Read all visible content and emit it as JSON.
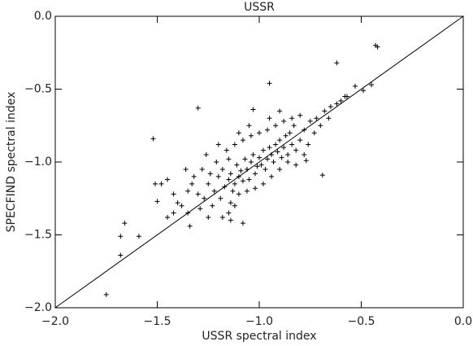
{
  "chart_data": {
    "type": "scatter",
    "title": "USSR",
    "x_label": "USSR spectral index",
    "y_label": "SPECFIND spectral index",
    "xlim": [
      -2,
      0
    ],
    "ylim": [
      -2,
      0
    ],
    "xticks": [
      {
        "value": -2,
        "label": "−2.0"
      },
      {
        "value": -1.5,
        "label": "−1.5"
      },
      {
        "value": -1,
        "label": "−1.0"
      },
      {
        "value": -0.5,
        "label": "−0.5"
      },
      {
        "value": 0,
        "label": "0.0"
      }
    ],
    "yticks": [
      {
        "value": -2,
        "label": "−2.0"
      },
      {
        "value": -1.5,
        "label": "−1.5"
      },
      {
        "value": -1,
        "label": "−1.0"
      },
      {
        "value": -0.5,
        "label": "−0.5"
      },
      {
        "value": 0,
        "label": "0.0"
      }
    ],
    "color": "#000000",
    "reference_line": true,
    "x": [
      -0.43,
      -0.42,
      -1.75,
      -0.62,
      -0.53,
      -0.95,
      -1.52,
      -1.3,
      -1.03,
      -0.45,
      -0.49,
      -0.57,
      -0.77,
      -0.69,
      -1.08,
      -1.68,
      -1.66,
      -1.68,
      -1.59,
      -1.51,
      -1.42,
      -1.45,
      -1.34,
      -1.14,
      -1.25,
      -1.22,
      -1.2,
      -1.18,
      -1.17,
      -1.15,
      -1.14,
      -1.13,
      -1.12,
      -1.11,
      -1.1,
      -1.09,
      -1.08,
      -1.07,
      -1.06,
      -1.05,
      -1.04,
      -1.03,
      -1.02,
      -1.01,
      -1.0,
      -0.99,
      -0.98,
      -0.97,
      -0.96,
      -0.95,
      -0.94,
      -0.93,
      -0.92,
      -0.91,
      -0.9,
      -0.89,
      -0.88,
      -0.87,
      -0.86,
      -0.85,
      -0.84,
      -0.83,
      -0.82,
      -0.8,
      -0.78,
      -0.76,
      -0.75,
      -0.73,
      -0.72,
      -0.7,
      -0.68,
      -0.66,
      -0.65,
      -0.62,
      -0.6,
      -0.58,
      -1.3,
      -1.32,
      -1.35,
      -1.38,
      -1.4,
      -1.28,
      -1.27,
      -1.26,
      -1.24,
      -1.23,
      -1.21,
      -1.19,
      -1.16,
      -1.14,
      -1.12,
      -1.1,
      -1.08,
      -1.06,
      -1.04,
      -1.02,
      -1.0,
      -0.98,
      -0.96,
      -0.94,
      -0.92,
      -0.9,
      -0.88,
      -0.86,
      -0.84,
      -0.82,
      -0.8,
      -0.78,
      -1.45,
      -1.42,
      -1.36,
      -1.33,
      -1.29,
      -1.18,
      -1.15,
      -1.12,
      -1.2,
      -1.05,
      -0.95,
      -0.9,
      -1.1,
      -1.15,
      -1.25,
      -1.35,
      -1.48,
      -1.5
    ],
    "y": [
      -0.2,
      -0.21,
      -1.91,
      -0.32,
      -0.48,
      -0.46,
      -0.84,
      -0.63,
      -0.64,
      -0.47,
      -0.51,
      -0.55,
      -0.99,
      -1.09,
      -1.42,
      -1.64,
      -1.42,
      -1.51,
      -1.51,
      -1.15,
      -1.22,
      -1.38,
      -1.44,
      -1.4,
      -1.15,
      -1.2,
      -1.1,
      -1.05,
      -1.17,
      -1.12,
      -1.08,
      -1.2,
      -1.15,
      -1.02,
      -1.1,
      -1.06,
      -1.13,
      -0.98,
      -1.05,
      -1.12,
      -1.0,
      -0.95,
      -1.08,
      -1.03,
      -0.97,
      -1.02,
      -0.92,
      -1.05,
      -0.98,
      -0.9,
      -0.95,
      -1.0,
      -0.88,
      -0.93,
      -0.85,
      -0.97,
      -0.9,
      -0.82,
      -0.95,
      -0.8,
      -0.88,
      -0.75,
      -0.92,
      -0.85,
      -0.78,
      -0.88,
      -0.72,
      -0.8,
      -0.7,
      -0.75,
      -0.65,
      -0.7,
      -0.62,
      -0.6,
      -0.58,
      -0.55,
      -1.22,
      -1.1,
      -1.2,
      -1.3,
      -1.28,
      -1.05,
      -1.25,
      -0.95,
      -1.08,
      -1.3,
      -1.0,
      -1.25,
      -0.92,
      -1.28,
      -0.88,
      -1.22,
      -0.85,
      -1.2,
      -0.82,
      -1.18,
      -0.8,
      -1.15,
      -0.78,
      -1.1,
      -0.75,
      -1.05,
      -0.72,
      -1.0,
      -0.7,
      -1.02,
      -0.68,
      -0.95,
      -1.12,
      -1.35,
      -1.05,
      -1.15,
      -1.32,
      -1.38,
      -1.35,
      -1.3,
      -0.88,
      -0.75,
      -0.7,
      -0.65,
      -0.8,
      -0.98,
      -1.38,
      -1.35,
      -1.15,
      -1.27
    ]
  }
}
